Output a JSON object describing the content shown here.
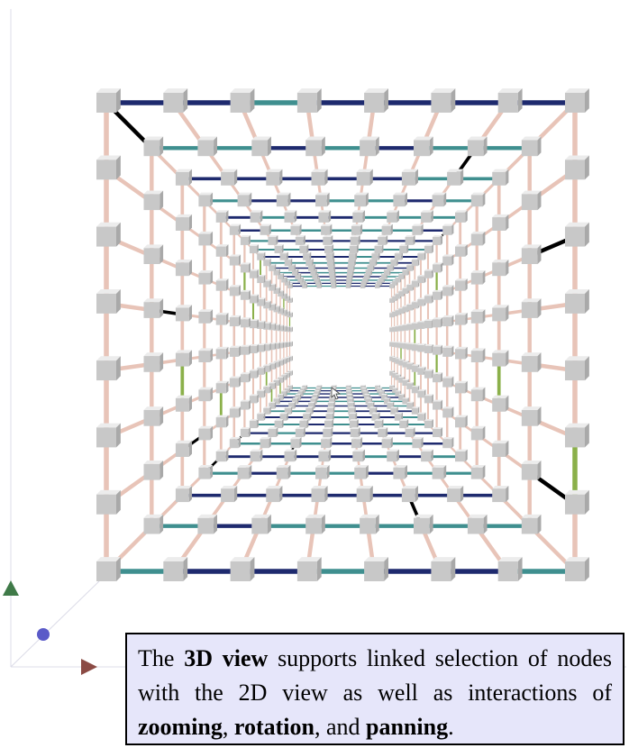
{
  "caption": {
    "t1": "The ",
    "b1": "3D view",
    "t2": " supports linked selection of nodes with the 2D view as well as interactions of ",
    "b2": "zooming",
    "t3": ", ",
    "b3": "rotation",
    "t4": ", and ",
    "b4": "panning",
    "t5": "."
  },
  "colors": {
    "node_fill": "#c8c8c8",
    "node_top": "#ececec",
    "node_side": "#a9a9a9",
    "edge_vertical": "#e8c4b8",
    "edge_depth": "#e8c4b8",
    "edge_horizontal_dark": "#1e2a6e",
    "edge_horizontal_teal": "#3f8f8f",
    "edge_highlight": "#000000",
    "edge_green": "#8bb04a",
    "axis_x_cone": "#8b4a44",
    "axis_y_cone": "#3f7a48",
    "axis_z_sphere": "#5a5ac8",
    "axis_line": "#dcdce8"
  },
  "icons": {
    "cursor": "mouse-pointer-icon"
  }
}
